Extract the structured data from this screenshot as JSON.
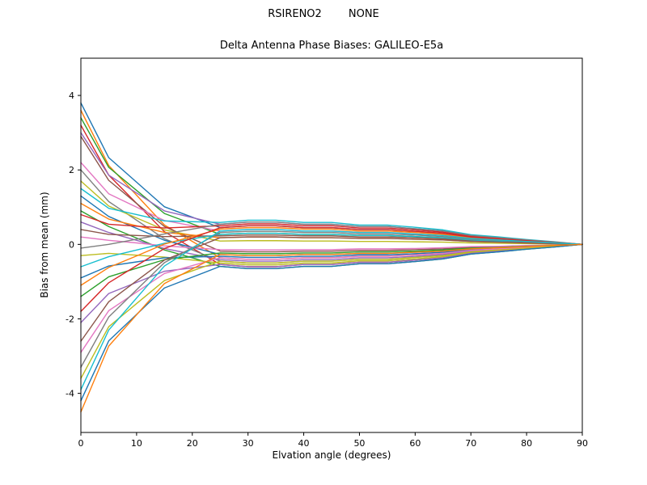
{
  "chart_data": {
    "type": "line",
    "suptitle": "RSIRENO2        NONE",
    "title": "Delta Antenna Phase Biases: GALILEO-E5a",
    "xlabel": "Elvation angle (degrees)",
    "ylabel": "Bias from mean (mm)",
    "xlim": [
      0,
      90
    ],
    "ylim": [
      -5.05,
      5.0
    ],
    "xticks": [
      0,
      10,
      20,
      30,
      40,
      50,
      60,
      70,
      80,
      90
    ],
    "yticks": [
      -4,
      -2,
      0,
      2,
      4
    ],
    "grid": false,
    "legend": "none",
    "colors": [
      "#1f77b4",
      "#ff7f0e",
      "#2ca02c",
      "#d62728",
      "#9467bd",
      "#8c564b",
      "#e377c2",
      "#7f7f7f",
      "#bcbd22",
      "#17becf"
    ],
    "x": [
      0,
      5,
      10,
      15,
      20,
      25,
      30,
      35,
      40,
      45,
      50,
      55,
      60,
      65,
      70,
      75,
      80,
      85,
      90
    ],
    "series": [
      {
        "values": [
          3.8,
          2.33,
          1.67,
          1.01,
          0.73,
          0.45,
          0.5,
          0.5,
          0.45,
          0.45,
          0.4,
          0.4,
          0.35,
          0.3,
          0.2,
          0.15,
          0.1,
          0.05,
          0
        ]
      },
      {
        "values": [
          3.6,
          2.12,
          1.32,
          0.52,
          0.08,
          -0.36,
          -0.4,
          -0.4,
          -0.36,
          -0.36,
          -0.32,
          -0.32,
          -0.28,
          -0.24,
          -0.16,
          -0.12,
          -0.08,
          -0.04,
          0
        ]
      },
      {
        "values": [
          3.4,
          2.07,
          1.45,
          0.83,
          0.55,
          0.27,
          0.3,
          0.3,
          0.27,
          0.27,
          0.24,
          0.24,
          0.21,
          0.18,
          0.12,
          0.09,
          0.06,
          0.03,
          0
        ]
      },
      {
        "values": [
          3.2,
          1.86,
          1.1,
          0.34,
          -0.1,
          -0.54,
          -0.6,
          -0.6,
          -0.54,
          -0.54,
          -0.48,
          -0.48,
          -0.42,
          -0.36,
          -0.24,
          -0.18,
          -0.12,
          -0.06,
          0
        ]
      },
      {
        "values": [
          3.0,
          1.86,
          1.38,
          0.9,
          0.72,
          0.54,
          0.6,
          0.6,
          0.54,
          0.54,
          0.48,
          0.48,
          0.42,
          0.36,
          0.24,
          0.18,
          0.12,
          0.06,
          0
        ]
      },
      {
        "values": [
          2.9,
          1.72,
          1.1,
          0.48,
          0.15,
          -0.18,
          -0.2,
          -0.2,
          -0.18,
          -0.18,
          -0.16,
          -0.16,
          -0.14,
          -0.12,
          -0.08,
          -0.06,
          -0.04,
          -0.02,
          0
        ]
      },
      {
        "values": [
          2.2,
          1.36,
          1.0,
          0.64,
          0.5,
          0.36,
          0.4,
          0.4,
          0.36,
          0.36,
          0.32,
          0.32,
          0.28,
          0.24,
          0.16,
          0.12,
          0.08,
          0.04,
          0
        ]
      },
      {
        "values": [
          2.0,
          1.15,
          0.65,
          0.15,
          -0.15,
          -0.45,
          -0.5,
          -0.5,
          -0.45,
          -0.45,
          -0.4,
          -0.4,
          -0.35,
          -0.3,
          -0.2,
          -0.15,
          -0.1,
          -0.05,
          0
        ]
      },
      {
        "values": [
          1.7,
          1.03,
          0.71,
          0.39,
          0.24,
          0.09,
          0.1,
          0.1,
          0.09,
          0.09,
          0.08,
          0.08,
          0.07,
          0.06,
          0.04,
          0.03,
          0.02,
          0.01,
          0
        ]
      },
      {
        "values": [
          1.5,
          0.97,
          0.8,
          0.63,
          0.61,
          0.59,
          0.65,
          0.65,
          0.59,
          0.59,
          0.52,
          0.52,
          0.46,
          0.39,
          0.26,
          0.2,
          0.13,
          0.07,
          0
        ]
      },
      {
        "values": [
          1.3,
          0.75,
          0.43,
          0.11,
          -0.08,
          -0.27,
          -0.3,
          -0.3,
          -0.27,
          -0.27,
          -0.24,
          -0.24,
          -0.21,
          -0.18,
          -0.12,
          -0.09,
          -0.06,
          -0.03,
          0
        ]
      },
      {
        "values": [
          1.1,
          0.68,
          0.5,
          0.32,
          0.25,
          0.18,
          0.2,
          0.2,
          0.18,
          0.18,
          0.16,
          0.16,
          0.14,
          0.12,
          0.08,
          0.06,
          0.04,
          0.02,
          0
        ]
      },
      {
        "values": [
          0.9,
          0.48,
          0.17,
          -0.15,
          -0.36,
          -0.59,
          -0.65,
          -0.65,
          -0.59,
          -0.59,
          -0.52,
          -0.52,
          -0.46,
          -0.39,
          -0.26,
          -0.2,
          -0.13,
          -0.07,
          0
        ]
      },
      {
        "values": [
          0.8,
          0.54,
          0.49,
          0.44,
          0.47,
          0.5,
          0.55,
          0.55,
          0.5,
          0.5,
          0.44,
          0.44,
          0.39,
          0.33,
          0.22,
          0.17,
          0.11,
          0.06,
          0
        ]
      },
      {
        "values": [
          0.6,
          0.32,
          0.11,
          -0.11,
          -0.26,
          -0.41,
          -0.45,
          -0.45,
          -0.41,
          -0.41,
          -0.36,
          -0.36,
          -0.32,
          -0.27,
          -0.18,
          -0.14,
          -0.09,
          -0.05,
          0
        ]
      },
      {
        "values": [
          0.4,
          0.27,
          0.24,
          0.21,
          0.22,
          0.23,
          0.25,
          0.25,
          0.23,
          0.23,
          0.2,
          0.2,
          0.18,
          0.15,
          0.1,
          0.08,
          0.05,
          0.03,
          0
        ]
      },
      {
        "values": [
          0.2,
          0.11,
          0.04,
          -0.04,
          -0.09,
          -0.14,
          -0.15,
          -0.15,
          -0.14,
          -0.14,
          -0.12,
          -0.12,
          -0.11,
          -0.09,
          -0.06,
          -0.05,
          -0.03,
          -0.02,
          0
        ]
      },
      {
        "values": [
          -0.1,
          0.0,
          0.14,
          0.28,
          0.41,
          0.54,
          0.6,
          0.6,
          0.54,
          0.54,
          0.48,
          0.48,
          0.42,
          0.36,
          0.24,
          0.18,
          0.12,
          0.06,
          0
        ]
      },
      {
        "values": [
          -0.3,
          -0.24,
          -0.29,
          -0.34,
          -0.42,
          -0.5,
          -0.55,
          -0.55,
          -0.5,
          -0.5,
          -0.44,
          -0.44,
          -0.39,
          -0.33,
          -0.22,
          -0.17,
          -0.11,
          -0.06,
          0
        ]
      },
      {
        "values": [
          -0.6,
          -0.33,
          -0.15,
          0.03,
          0.15,
          0.27,
          0.3,
          0.3,
          0.27,
          0.27,
          0.24,
          0.24,
          0.21,
          0.18,
          0.12,
          0.09,
          0.06,
          0.03,
          0
        ]
      },
      {
        "values": [
          -0.9,
          -0.58,
          -0.47,
          -0.36,
          -0.34,
          -0.32,
          -0.35,
          -0.35,
          -0.32,
          -0.32,
          -0.28,
          -0.28,
          -0.25,
          -0.21,
          -0.14,
          -0.11,
          -0.07,
          -0.04,
          0
        ]
      },
      {
        "values": [
          -1.1,
          -0.62,
          -0.31,
          0.01,
          0.21,
          0.41,
          0.45,
          0.45,
          0.41,
          0.41,
          0.36,
          0.36,
          0.32,
          0.27,
          0.18,
          0.14,
          0.09,
          0.05,
          0
        ]
      },
      {
        "values": [
          -1.4,
          -0.87,
          -0.64,
          -0.41,
          -0.32,
          -0.23,
          -0.25,
          -0.25,
          -0.23,
          -0.23,
          -0.2,
          -0.2,
          -0.18,
          -0.15,
          -0.1,
          -0.08,
          -0.05,
          -0.03,
          0
        ]
      },
      {
        "values": [
          -1.8,
          -1.03,
          -0.57,
          -0.11,
          0.17,
          0.45,
          0.5,
          0.5,
          0.45,
          0.45,
          0.4,
          0.4,
          0.35,
          0.3,
          0.2,
          0.15,
          0.1,
          0.05,
          0
        ]
      },
      {
        "values": [
          -2.1,
          -1.32,
          -1.02,
          -0.72,
          -0.63,
          -0.54,
          -0.6,
          -0.6,
          -0.54,
          -0.54,
          -0.48,
          -0.48,
          -0.42,
          -0.36,
          -0.24,
          -0.18,
          -0.12,
          -0.06,
          0
        ]
      },
      {
        "values": [
          -2.6,
          -1.54,
          -0.98,
          -0.42,
          -0.12,
          0.18,
          0.2,
          0.2,
          0.18,
          0.18,
          0.16,
          0.16,
          0.14,
          0.12,
          0.08,
          0.06,
          0.04,
          0.02,
          0
        ]
      },
      {
        "values": [
          -2.9,
          -1.78,
          -1.28,
          -0.78,
          -0.57,
          -0.36,
          -0.4,
          -0.4,
          -0.36,
          -0.36,
          -0.32,
          -0.32,
          -0.28,
          -0.24,
          -0.16,
          -0.12,
          -0.08,
          -0.04,
          0
        ]
      },
      {
        "values": [
          -3.3,
          -1.95,
          -1.22,
          -0.49,
          -0.09,
          0.32,
          0.35,
          0.35,
          0.32,
          0.32,
          0.28,
          0.28,
          0.25,
          0.21,
          0.14,
          0.11,
          0.07,
          0.04,
          0
        ]
      },
      {
        "values": [
          -3.6,
          -2.21,
          -1.59,
          -0.97,
          -0.71,
          -0.45,
          -0.5,
          -0.5,
          -0.45,
          -0.45,
          -0.4,
          -0.4,
          -0.35,
          -0.3,
          -0.2,
          -0.15,
          -0.1,
          -0.05,
          0
        ]
      },
      {
        "values": [
          -3.9,
          -2.3,
          -1.44,
          -0.58,
          -0.11,
          0.36,
          0.4,
          0.4,
          0.36,
          0.36,
          0.32,
          0.32,
          0.28,
          0.24,
          0.16,
          0.12,
          0.08,
          0.04,
          0
        ]
      },
      {
        "values": [
          -4.2,
          -2.59,
          -1.88,
          -1.17,
          -0.88,
          -0.59,
          -0.65,
          -0.65,
          -0.59,
          -0.59,
          -0.52,
          -0.52,
          -0.46,
          -0.39,
          -0.26,
          -0.2,
          -0.13,
          -0.07,
          0
        ]
      },
      {
        "values": [
          -4.5,
          -2.73,
          -1.89,
          -1.05,
          -0.66,
          -0.27,
          -0.3,
          -0.3,
          -0.27,
          -0.27,
          -0.24,
          -0.24,
          -0.21,
          -0.18,
          -0.12,
          -0.09,
          -0.06,
          -0.03,
          0
        ]
      }
    ]
  }
}
